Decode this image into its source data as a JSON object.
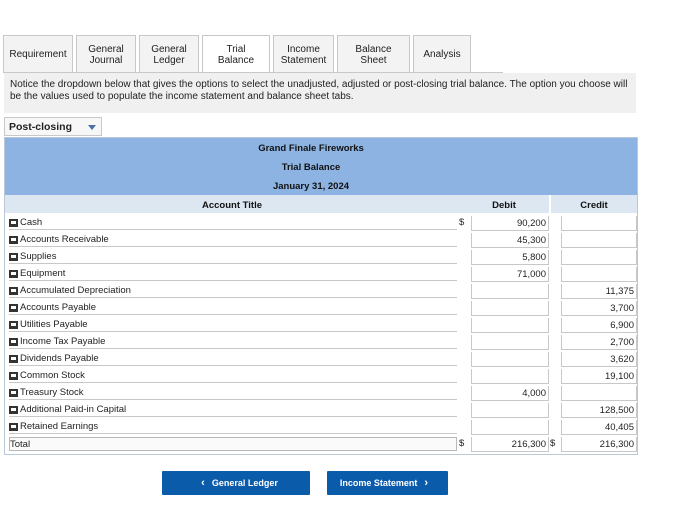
{
  "tabs": [
    {
      "label": "Requirement",
      "width": 70
    },
    {
      "label": "General\nJournal",
      "width": 60
    },
    {
      "label": "General\nLedger",
      "width": 60
    },
    {
      "label": "Trial Balance",
      "width": 68
    },
    {
      "label": "Income\nStatement",
      "width": 61
    },
    {
      "label": "Balance Sheet",
      "width": 73
    },
    {
      "label": "Analysis",
      "width": 58
    }
  ],
  "notice": "Notice the dropdown below that gives the options to select the unadjusted, adjusted or post-closing trial balance. The option you choose will be the values used to populate the income statement and balance sheet tabs.",
  "dropdown": {
    "selected": "Post-closing"
  },
  "report": {
    "company": "Grand Finale Fireworks",
    "title": "Trial Balance",
    "date": "January 31, 2024",
    "col_account": "Account Title",
    "col_debit": "Debit",
    "col_credit": "Credit"
  },
  "rows": [
    {
      "account": "Cash",
      "debit_sign": "$",
      "debit": "90,200",
      "credit_sign": "",
      "credit": ""
    },
    {
      "account": "Accounts Receivable",
      "debit_sign": "",
      "debit": "45,300",
      "credit_sign": "",
      "credit": ""
    },
    {
      "account": "Supplies",
      "debit_sign": "",
      "debit": "5,800",
      "credit_sign": "",
      "credit": ""
    },
    {
      "account": "Equipment",
      "debit_sign": "",
      "debit": "71,000",
      "credit_sign": "",
      "credit": ""
    },
    {
      "account": "Accumulated Depreciation",
      "debit_sign": "",
      "debit": "",
      "credit_sign": "",
      "credit": "11,375"
    },
    {
      "account": "Accounts Payable",
      "debit_sign": "",
      "debit": "",
      "credit_sign": "",
      "credit": "3,700"
    },
    {
      "account": "Utilities Payable",
      "debit_sign": "",
      "debit": "",
      "credit_sign": "",
      "credit": "6,900"
    },
    {
      "account": "Income Tax Payable",
      "debit_sign": "",
      "debit": "",
      "credit_sign": "",
      "credit": "2,700"
    },
    {
      "account": "Dividends Payable",
      "debit_sign": "",
      "debit": "",
      "credit_sign": "",
      "credit": "3,620"
    },
    {
      "account": "Common Stock",
      "debit_sign": "",
      "debit": "",
      "credit_sign": "",
      "credit": "19,100"
    },
    {
      "account": "Treasury Stock",
      "debit_sign": "",
      "debit": "4,000",
      "credit_sign": "",
      "credit": ""
    },
    {
      "account": "Additional Paid-in Capital",
      "debit_sign": "",
      "debit": "",
      "credit_sign": "",
      "credit": "128,500"
    },
    {
      "account": "Retained Earnings",
      "debit_sign": "",
      "debit": "",
      "credit_sign": "",
      "credit": "40,405"
    }
  ],
  "total": {
    "account": "Total",
    "debit_sign": "$",
    "debit": "216,300",
    "credit_sign": "$",
    "credit": "216,300"
  },
  "buttons": {
    "prev": "General Ledger",
    "next": "Income Statement"
  }
}
